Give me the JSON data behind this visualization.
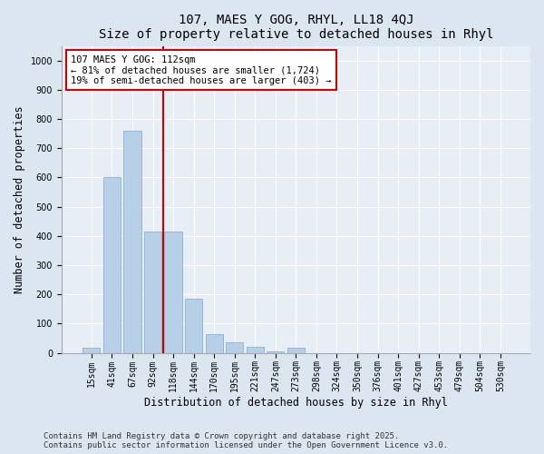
{
  "title1": "107, MAES Y GOG, RHYL, LL18 4QJ",
  "title2": "Size of property relative to detached houses in Rhyl",
  "xlabel": "Distribution of detached houses by size in Rhyl",
  "ylabel": "Number of detached properties",
  "categories": [
    "15sqm",
    "41sqm",
    "67sqm",
    "92sqm",
    "118sqm",
    "144sqm",
    "170sqm",
    "195sqm",
    "221sqm",
    "247sqm",
    "273sqm",
    "298sqm",
    "324sqm",
    "350sqm",
    "376sqm",
    "401sqm",
    "427sqm",
    "453sqm",
    "479sqm",
    "504sqm",
    "530sqm"
  ],
  "values": [
    18,
    600,
    760,
    415,
    415,
    185,
    65,
    35,
    20,
    5,
    18,
    0,
    0,
    0,
    0,
    0,
    0,
    0,
    0,
    0,
    0
  ],
  "bar_color": "#b8cfe8",
  "bar_edge_color": "#7aaad0",
  "vline_color": "#cc0000",
  "ylim": [
    0,
    1050
  ],
  "yticks": [
    0,
    100,
    200,
    300,
    400,
    500,
    600,
    700,
    800,
    900,
    1000
  ],
  "annotation_text": "107 MAES Y GOG: 112sqm\n← 81% of detached houses are smaller (1,724)\n19% of semi-detached houses are larger (403) →",
  "annotation_box_facecolor": "#ffffff",
  "annotation_box_edgecolor": "#cc0000",
  "footer1": "Contains HM Land Registry data © Crown copyright and database right 2025.",
  "footer2": "Contains public sector information licensed under the Open Government Licence v3.0.",
  "bg_color": "#dce6f0",
  "plot_bg_color": "#e8eef6",
  "grid_color": "#ffffff",
  "title_fontsize": 10,
  "label_fontsize": 8.5,
  "tick_fontsize": 7,
  "footer_fontsize": 6.5,
  "annot_fontsize": 7.5
}
